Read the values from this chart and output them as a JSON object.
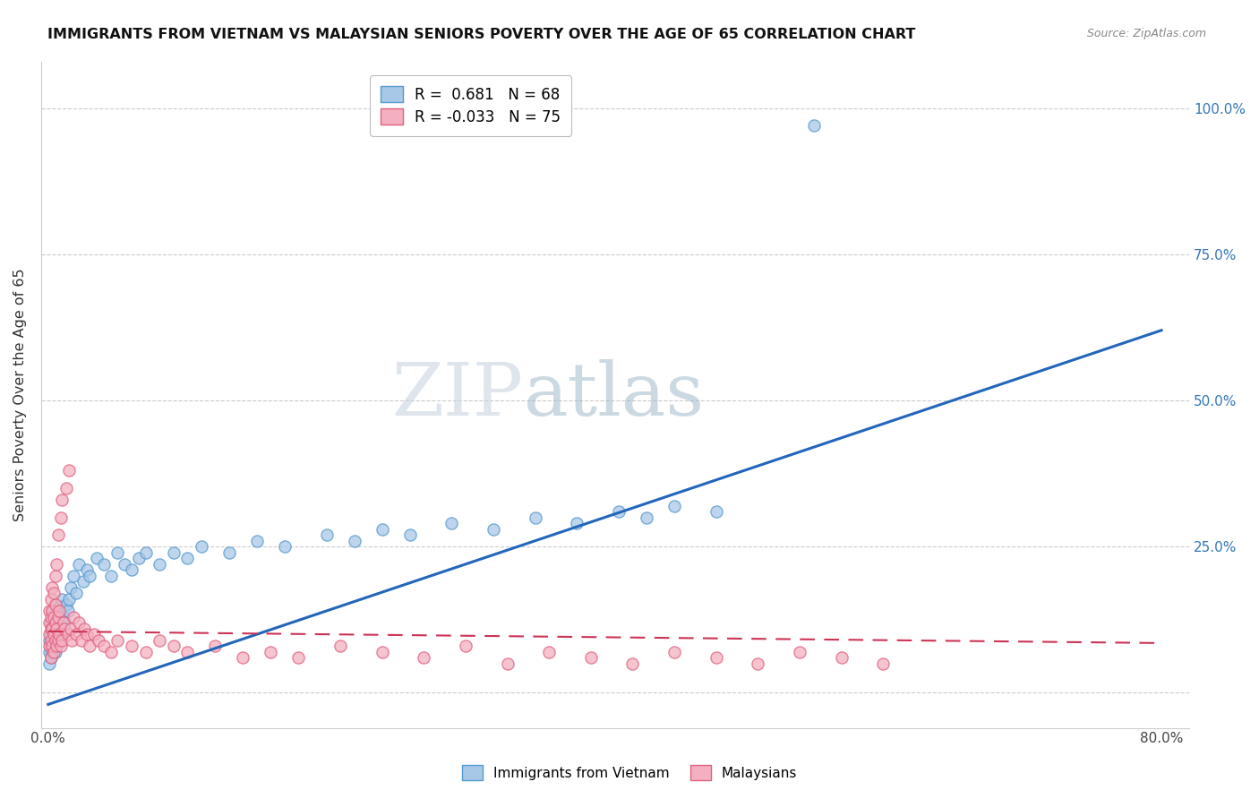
{
  "title": "IMMIGRANTS FROM VIETNAM VS MALAYSIAN SENIORS POVERTY OVER THE AGE OF 65 CORRELATION CHART",
  "source": "Source: ZipAtlas.com",
  "ylabel": "Seniors Poverty Over the Age of 65",
  "yticks": [
    0.0,
    0.25,
    0.5,
    0.75,
    1.0
  ],
  "ytick_labels": [
    "",
    "25.0%",
    "50.0%",
    "75.0%",
    "100.0%"
  ],
  "xlim": [
    -0.005,
    0.82
  ],
  "ylim": [
    -0.06,
    1.08
  ],
  "watermark_zip": "ZIP",
  "watermark_atlas": "atlas",
  "legend_r1": "R =  0.681   N = 68",
  "legend_r2": "R = -0.033   N = 75",
  "color_blue_fill": "#a8c8e8",
  "color_blue_edge": "#5599cc",
  "color_pink_fill": "#f4b0c0",
  "color_pink_edge": "#e06080",
  "color_line_blue": "#2266bb",
  "color_line_pink": "#cc3355",
  "viet_line_x0": 0.0,
  "viet_line_y0": -0.02,
  "viet_line_x1": 0.8,
  "viet_line_y1": 0.62,
  "malay_line_x0": 0.0,
  "malay_line_y0": 0.105,
  "malay_line_x1": 0.8,
  "malay_line_y1": 0.085,
  "vietnam_x": [
    0.001,
    0.001,
    0.001,
    0.002,
    0.002,
    0.002,
    0.002,
    0.003,
    0.003,
    0.003,
    0.003,
    0.004,
    0.004,
    0.004,
    0.005,
    0.005,
    0.005,
    0.005,
    0.006,
    0.006,
    0.006,
    0.007,
    0.007,
    0.008,
    0.008,
    0.009,
    0.01,
    0.01,
    0.011,
    0.012,
    0.013,
    0.014,
    0.015,
    0.016,
    0.018,
    0.02,
    0.022,
    0.025,
    0.028,
    0.03,
    0.035,
    0.04,
    0.045,
    0.05,
    0.055,
    0.06,
    0.065,
    0.07,
    0.08,
    0.09,
    0.1,
    0.11,
    0.13,
    0.15,
    0.17,
    0.2,
    0.22,
    0.24,
    0.26,
    0.29,
    0.32,
    0.35,
    0.38,
    0.41,
    0.43,
    0.45,
    0.48,
    0.55
  ],
  "vietnam_y": [
    0.05,
    0.07,
    0.09,
    0.06,
    0.08,
    0.1,
    0.12,
    0.07,
    0.09,
    0.11,
    0.14,
    0.08,
    0.1,
    0.13,
    0.07,
    0.09,
    0.12,
    0.15,
    0.08,
    0.11,
    0.14,
    0.1,
    0.13,
    0.09,
    0.14,
    0.11,
    0.1,
    0.16,
    0.13,
    0.12,
    0.15,
    0.14,
    0.16,
    0.18,
    0.2,
    0.17,
    0.22,
    0.19,
    0.21,
    0.2,
    0.23,
    0.22,
    0.2,
    0.24,
    0.22,
    0.21,
    0.23,
    0.24,
    0.22,
    0.24,
    0.23,
    0.25,
    0.24,
    0.26,
    0.25,
    0.27,
    0.26,
    0.28,
    0.27,
    0.29,
    0.28,
    0.3,
    0.29,
    0.31,
    0.3,
    0.32,
    0.31,
    0.97
  ],
  "malaysia_x": [
    0.001,
    0.001,
    0.001,
    0.001,
    0.002,
    0.002,
    0.002,
    0.002,
    0.002,
    0.003,
    0.003,
    0.003,
    0.003,
    0.004,
    0.004,
    0.004,
    0.004,
    0.005,
    0.005,
    0.005,
    0.005,
    0.006,
    0.006,
    0.006,
    0.007,
    0.007,
    0.007,
    0.008,
    0.008,
    0.009,
    0.009,
    0.01,
    0.01,
    0.011,
    0.012,
    0.013,
    0.014,
    0.015,
    0.016,
    0.017,
    0.018,
    0.02,
    0.022,
    0.024,
    0.026,
    0.028,
    0.03,
    0.033,
    0.036,
    0.04,
    0.045,
    0.05,
    0.06,
    0.07,
    0.08,
    0.09,
    0.1,
    0.12,
    0.14,
    0.16,
    0.18,
    0.21,
    0.24,
    0.27,
    0.3,
    0.33,
    0.36,
    0.39,
    0.42,
    0.45,
    0.48,
    0.51,
    0.54,
    0.57,
    0.6
  ],
  "malaysia_y": [
    0.08,
    0.1,
    0.12,
    0.14,
    0.06,
    0.09,
    0.11,
    0.13,
    0.16,
    0.08,
    0.11,
    0.14,
    0.18,
    0.07,
    0.1,
    0.13,
    0.17,
    0.09,
    0.12,
    0.15,
    0.2,
    0.08,
    0.11,
    0.22,
    0.09,
    0.13,
    0.27,
    0.1,
    0.14,
    0.08,
    0.3,
    0.09,
    0.33,
    0.12,
    0.11,
    0.35,
    0.1,
    0.38,
    0.11,
    0.09,
    0.13,
    0.1,
    0.12,
    0.09,
    0.11,
    0.1,
    0.08,
    0.1,
    0.09,
    0.08,
    0.07,
    0.09,
    0.08,
    0.07,
    0.09,
    0.08,
    0.07,
    0.08,
    0.06,
    0.07,
    0.06,
    0.08,
    0.07,
    0.06,
    0.08,
    0.05,
    0.07,
    0.06,
    0.05,
    0.07,
    0.06,
    0.05,
    0.07,
    0.06,
    0.05
  ]
}
